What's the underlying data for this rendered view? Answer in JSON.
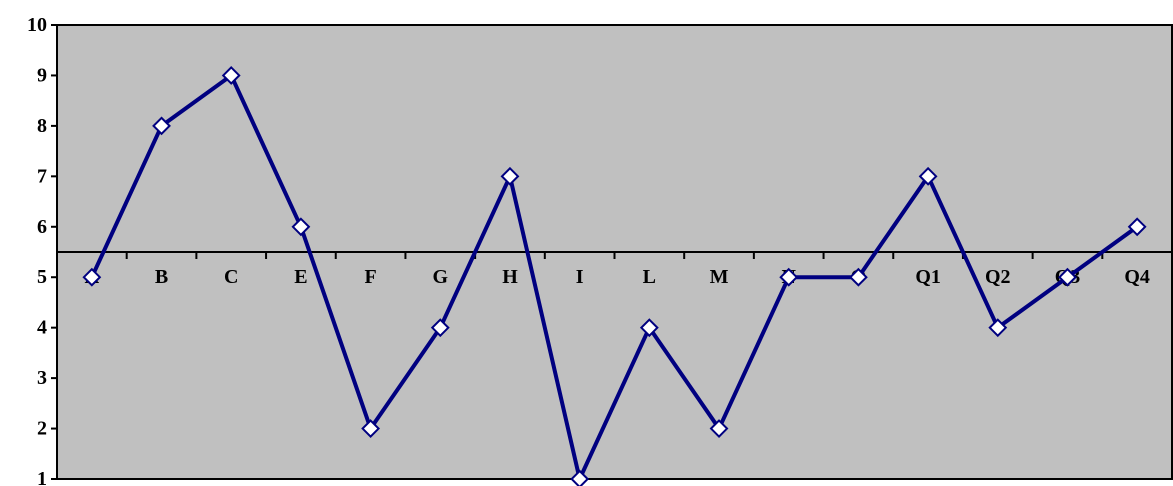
{
  "chart_data": {
    "type": "line",
    "title": "",
    "xlabel": "",
    "ylabel": "",
    "categories": [
      "A",
      "B",
      "C",
      "E",
      "F",
      "G",
      "H",
      "I",
      "L",
      "M",
      "N",
      "O",
      "Q1",
      "Q2",
      "Q3",
      "Q4"
    ],
    "series": [
      {
        "values": [
          5,
          8,
          9,
          6,
          2,
          4,
          7,
          1,
          4,
          2,
          5,
          5,
          7,
          4,
          5,
          6
        ]
      }
    ],
    "ylim": [
      1,
      10
    ],
    "yticks": [
      1,
      2,
      3,
      4,
      5,
      6,
      7,
      8,
      9,
      10
    ],
    "x_axis_crosses_at": 5.5,
    "grid": false,
    "legend": "none",
    "marker": "diamond",
    "colors": {
      "plot_background": "#c0c0c0",
      "line": "#000080",
      "marker_fill": "#ffffff",
      "axis": "#000000"
    }
  }
}
